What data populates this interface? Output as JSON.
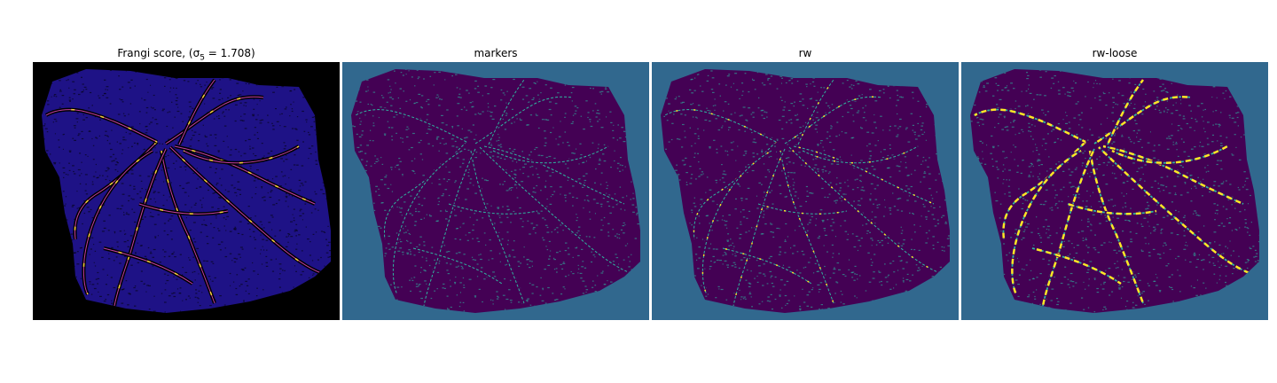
{
  "panels": [
    {
      "title": "Frangi score, (σ",
      "title_sub": "5",
      "title_tail": " = 1.708)",
      "colormap": "plasma",
      "background": "#000000",
      "fill": "#1e1286",
      "vessel": "#c43fa4",
      "highlight": "#f5d13a"
    },
    {
      "title": "markers",
      "colormap": "viridis",
      "background": "#31688e",
      "fill": "#440154",
      "vessel": "#2fb5a0",
      "highlight": "#2fb5a0"
    },
    {
      "title": "rw",
      "colormap": "viridis",
      "background": "#31688e",
      "fill": "#440154",
      "vessel": "#2fb5a0",
      "highlight": "#fde725"
    },
    {
      "title": "rw-loose",
      "colormap": "viridis",
      "background": "#31688e",
      "fill": "#440154",
      "vessel": "#2fb5a0",
      "highlight": "#fde725"
    }
  ]
}
